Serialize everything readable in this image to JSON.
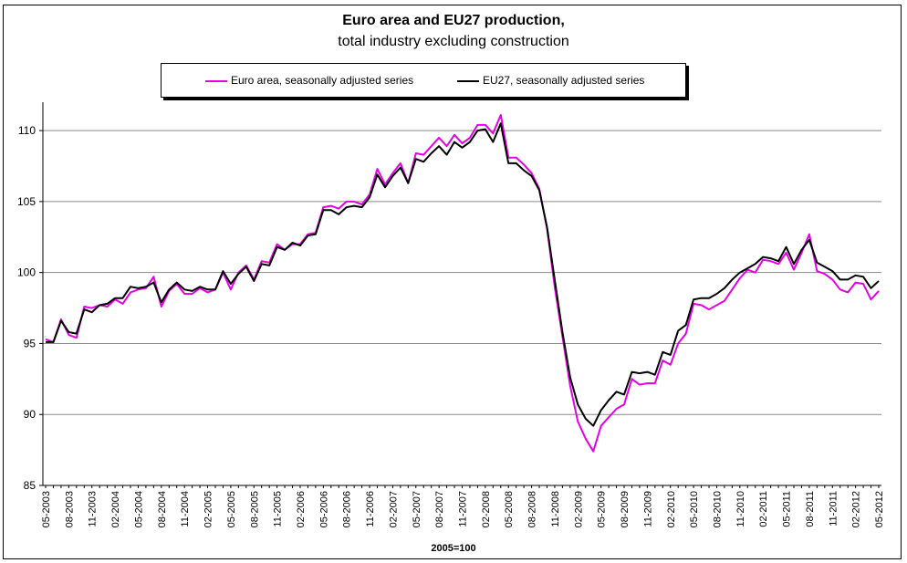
{
  "chart_data": {
    "type": "line",
    "title": "Euro area and EU27 production,",
    "subtitle": "total industry excluding construction",
    "xlabel": "2005=100",
    "ylabel": "",
    "ylim": [
      85,
      112
    ],
    "yticks": [
      85,
      90,
      95,
      100,
      105,
      110
    ],
    "grid": true,
    "legend_position": "top",
    "x": [
      "05-2003",
      "06-2003",
      "07-2003",
      "08-2003",
      "09-2003",
      "10-2003",
      "11-2003",
      "12-2003",
      "01-2004",
      "02-2004",
      "03-2004",
      "04-2004",
      "05-2004",
      "06-2004",
      "07-2004",
      "08-2004",
      "09-2004",
      "10-2004",
      "11-2004",
      "12-2004",
      "01-2005",
      "02-2005",
      "03-2005",
      "04-2005",
      "05-2005",
      "06-2005",
      "07-2005",
      "08-2005",
      "09-2005",
      "10-2005",
      "11-2005",
      "12-2005",
      "01-2006",
      "02-2006",
      "03-2006",
      "04-2006",
      "05-2006",
      "06-2006",
      "07-2006",
      "08-2006",
      "09-2006",
      "10-2006",
      "11-2006",
      "12-2006",
      "01-2007",
      "02-2007",
      "03-2007",
      "04-2007",
      "05-2007",
      "06-2007",
      "07-2007",
      "08-2007",
      "09-2007",
      "10-2007",
      "11-2007",
      "12-2007",
      "01-2008",
      "02-2008",
      "03-2008",
      "04-2008",
      "05-2008",
      "06-2008",
      "07-2008",
      "08-2008",
      "09-2008",
      "10-2008",
      "11-2008",
      "12-2008",
      "01-2009",
      "02-2009",
      "03-2009",
      "04-2009",
      "05-2009",
      "06-2009",
      "07-2009",
      "08-2009",
      "09-2009",
      "10-2009",
      "11-2009",
      "12-2009",
      "01-2010",
      "02-2010",
      "03-2010",
      "04-2010",
      "05-2010",
      "06-2010",
      "07-2010",
      "08-2010",
      "09-2010",
      "10-2010",
      "11-2010",
      "12-2010",
      "01-2011",
      "02-2011",
      "03-2011",
      "04-2011",
      "05-2011",
      "06-2011",
      "07-2011",
      "08-2011",
      "09-2011",
      "10-2011",
      "11-2011",
      "12-2011",
      "01-2012",
      "02-2012",
      "03-2012",
      "04-2012",
      "05-2012"
    ],
    "xtick_labels": [
      "05-2003",
      "08-2003",
      "11-2003",
      "02-2004",
      "05-2004",
      "08-2004",
      "11-2004",
      "02-2005",
      "05-2005",
      "08-2005",
      "11-2005",
      "02-2006",
      "05-2006",
      "08-2006",
      "11-2006",
      "02-2007",
      "05-2007",
      "08-2007",
      "11-2007",
      "02-2008",
      "05-2008",
      "08-2008",
      "11-2008",
      "02-2009",
      "05-2009",
      "08-2009",
      "11-2009",
      "02-2010",
      "05-2010",
      "08-2010",
      "11-2010",
      "02-2011",
      "05-2011",
      "08-2011",
      "11-2011",
      "02-2012",
      "05-2012"
    ],
    "series": [
      {
        "name": "Euro area, seasonally adjusted series",
        "color": "#e600e6",
        "values": [
          95.3,
          95.1,
          96.7,
          95.6,
          95.4,
          97.6,
          97.5,
          97.7,
          97.6,
          98.1,
          97.8,
          98.6,
          98.8,
          98.9,
          99.7,
          97.6,
          98.7,
          99.2,
          98.5,
          98.5,
          98.9,
          98.6,
          98.8,
          100.0,
          98.8,
          100.0,
          100.5,
          99.5,
          100.8,
          100.7,
          102.0,
          101.6,
          102.0,
          102.0,
          102.7,
          102.8,
          104.6,
          104.7,
          104.5,
          105.0,
          105.0,
          104.8,
          105.5,
          107.3,
          106.2,
          107.0,
          107.7,
          106.3,
          108.4,
          108.3,
          108.9,
          109.5,
          108.9,
          109.7,
          109.1,
          109.5,
          110.4,
          110.4,
          109.8,
          111.1,
          108.1,
          108.1,
          107.6,
          107.0,
          105.9,
          103.1,
          99.0,
          95.5,
          92.0,
          89.5,
          88.3,
          87.4,
          89.2,
          89.8,
          90.4,
          90.7,
          92.5,
          92.1,
          92.2,
          92.2,
          93.8,
          93.5,
          95.0,
          95.7,
          97.8,
          97.7,
          97.4,
          97.7,
          98.0,
          98.8,
          99.6,
          100.2,
          100.0,
          100.9,
          100.8,
          100.6,
          101.4,
          100.2,
          101.4,
          102.7,
          100.1,
          99.9,
          99.5,
          98.8,
          98.6,
          99.3,
          99.2,
          98.1,
          98.7
        ]
      },
      {
        "name": "EU27, seasonally adjusted series",
        "color": "#000000",
        "values": [
          95.1,
          95.1,
          96.6,
          95.8,
          95.7,
          97.4,
          97.2,
          97.7,
          97.8,
          98.2,
          98.2,
          99.0,
          98.9,
          99.0,
          99.3,
          97.9,
          98.8,
          99.3,
          98.8,
          98.7,
          99.0,
          98.8,
          98.8,
          100.1,
          99.2,
          99.9,
          100.4,
          99.4,
          100.6,
          100.5,
          101.8,
          101.6,
          102.1,
          101.9,
          102.6,
          102.7,
          104.4,
          104.4,
          104.1,
          104.6,
          104.7,
          104.6,
          105.3,
          106.9,
          106.0,
          106.8,
          107.4,
          106.3,
          108.0,
          107.8,
          108.4,
          108.9,
          108.3,
          109.2,
          108.8,
          109.2,
          110.0,
          110.1,
          109.2,
          110.5,
          107.7,
          107.7,
          107.2,
          106.8,
          105.8,
          103.2,
          99.5,
          95.8,
          92.6,
          90.7,
          89.7,
          89.2,
          90.3,
          91.0,
          91.6,
          91.4,
          93.0,
          92.9,
          93.0,
          92.8,
          94.4,
          94.2,
          95.9,
          96.3,
          98.1,
          98.2,
          98.2,
          98.5,
          98.9,
          99.5,
          100.0,
          100.3,
          100.6,
          101.1,
          101.0,
          100.8,
          101.8,
          100.6,
          101.6,
          102.3,
          100.7,
          100.4,
          100.1,
          99.5,
          99.5,
          99.8,
          99.7,
          98.9,
          99.4
        ]
      }
    ]
  }
}
